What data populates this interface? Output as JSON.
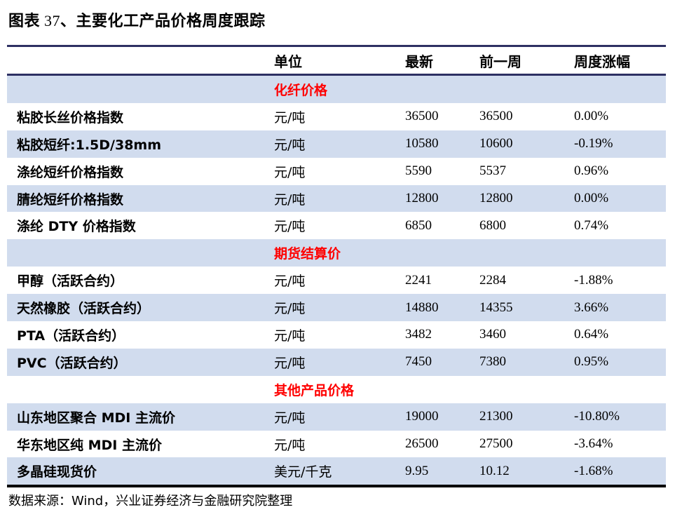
{
  "title": {
    "prefix": "图表",
    "number": " 37",
    "text": "、主要化工产品价格周度跟踪"
  },
  "table": {
    "headers": {
      "name": "",
      "unit": "单位",
      "latest": "最新",
      "prev_week": "前一周",
      "weekly_change": "周度涨幅"
    },
    "sections": [
      {
        "label": "化纤价格",
        "rows": [
          {
            "name": "粘胶长丝价格指数",
            "unit": "元/吨",
            "latest": "36500",
            "prev_week": "36500",
            "weekly_change": "0.00%"
          },
          {
            "name": "粘胶短纤:1.5D/38mm",
            "unit": "元/吨",
            "latest": "10580",
            "prev_week": "10600",
            "weekly_change": "-0.19%"
          },
          {
            "name": "涤纶短纤价格指数",
            "unit": "元/吨",
            "latest": "5590",
            "prev_week": "5537",
            "weekly_change": "0.96%"
          },
          {
            "name": "腈纶短纤价格指数",
            "unit": "元/吨",
            "latest": "12800",
            "prev_week": "12800",
            "weekly_change": "0.00%"
          },
          {
            "name": "涤纶 DTY 价格指数",
            "unit": "元/吨",
            "latest": "6850",
            "prev_week": "6800",
            "weekly_change": "0.74%"
          }
        ]
      },
      {
        "label": "期货结算价",
        "rows": [
          {
            "name": "甲醇（活跃合约）",
            "unit": "元/吨",
            "latest": "2241",
            "prev_week": "2284",
            "weekly_change": "-1.88%"
          },
          {
            "name": "天然橡胶（活跃合约）",
            "unit": "元/吨",
            "latest": "14880",
            "prev_week": "14355",
            "weekly_change": "3.66%"
          },
          {
            "name": "PTA（活跃合约）",
            "unit": "元/吨",
            "latest": "3482",
            "prev_week": "3460",
            "weekly_change": "0.64%"
          },
          {
            "name": "PVC（活跃合约）",
            "unit": "元/吨",
            "latest": "7450",
            "prev_week": "7380",
            "weekly_change": "0.95%"
          }
        ]
      },
      {
        "label": "其他产品价格",
        "rows": [
          {
            "name": "山东地区聚合 MDI 主流价",
            "unit": "元/吨",
            "latest": "19000",
            "prev_week": "21300",
            "weekly_change": "-10.80%"
          },
          {
            "name": "华东地区纯 MDI 主流价",
            "unit": "元/吨",
            "latest": "26500",
            "prev_week": "27500",
            "weekly_change": "-3.64%"
          },
          {
            "name": "多晶硅现货价",
            "unit": "美元/千克",
            "latest": "9.95",
            "prev_week": "10.12",
            "weekly_change": "-1.68%"
          }
        ]
      }
    ]
  },
  "source": "数据来源：Wind，兴业证券经济与金融研究院整理",
  "colors": {
    "rule": "#2E3163",
    "shade": "#D1DCEE",
    "section_label": "#FF0000"
  }
}
